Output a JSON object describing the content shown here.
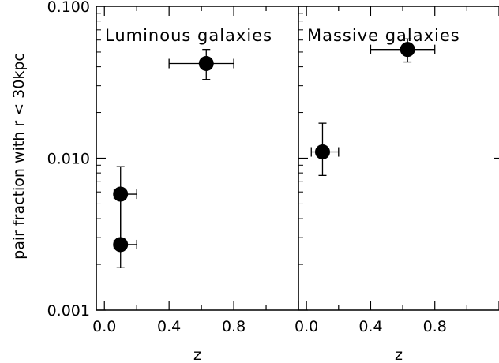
{
  "chart_data": [
    {
      "type": "scatter",
      "title": "Luminous galaxies",
      "xlabel": "z",
      "ylabel": "pair fraction with r < 30kpc",
      "yscale": "log",
      "xlim": [
        -0.05,
        1.2
      ],
      "ylim": [
        0.001,
        0.1
      ],
      "xticks": [
        "0.0",
        "0.4",
        "0.8"
      ],
      "yticks": [
        "0.001",
        "0.010",
        "0.100"
      ],
      "points": [
        {
          "x": 0.1,
          "y": 0.0058,
          "xerr": [
            0.06,
            0.2
          ],
          "yerr": [
            0.0027,
            0.0088
          ]
        },
        {
          "x": 0.1,
          "y": 0.0027,
          "xerr": [
            0.06,
            0.2
          ],
          "yerr": [
            0.0019,
            0.0058
          ]
        },
        {
          "x": 0.63,
          "y": 0.042,
          "xerr": [
            0.4,
            0.8
          ],
          "yerr": [
            0.033,
            0.052
          ]
        }
      ]
    },
    {
      "type": "scatter",
      "title": "Massive galaxies",
      "xlabel": "z",
      "yscale": "log",
      "xlim": [
        -0.05,
        1.2
      ],
      "ylim": [
        0.001,
        0.1
      ],
      "xticks": [
        "0.0",
        "0.4",
        "0.8"
      ],
      "points": [
        {
          "x": 0.1,
          "y": 0.011,
          "xerr": [
            0.03,
            0.2
          ],
          "yerr": [
            0.0077,
            0.017
          ]
        },
        {
          "x": 0.63,
          "y": 0.052,
          "xerr": [
            0.4,
            0.8
          ],
          "yerr": [
            0.043,
            0.061
          ]
        }
      ]
    }
  ]
}
